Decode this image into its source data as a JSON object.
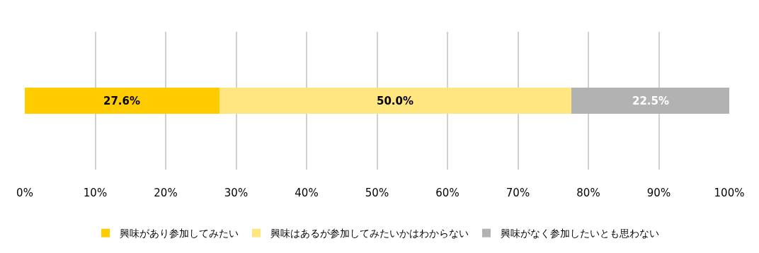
{
  "chart_data": {
    "type": "bar",
    "orientation": "horizontal",
    "stacked": true,
    "categories": [
      null
    ],
    "series": [
      {
        "name": "興味があり参加してみたい",
        "color": "#ffcc00",
        "values": [
          27.6
        ],
        "value_labels": [
          "27.6%"
        ]
      },
      {
        "name": "興味はあるが参加してみたいかはわからない",
        "color": "#ffe680",
        "values": [
          50.0
        ],
        "value_labels": [
          "50.0%"
        ]
      },
      {
        "name": "興味がなく参加したいとも思わない",
        "color": "#b2b2b2",
        "values": [
          22.5
        ],
        "value_labels": [
          "22.5%"
        ]
      }
    ],
    "xlim": [
      0,
      100
    ],
    "xticks": [
      {
        "value": 0,
        "label": "0%"
      },
      {
        "value": 10,
        "label": "10%"
      },
      {
        "value": 20,
        "label": "20%"
      },
      {
        "value": 30,
        "label": "30%"
      },
      {
        "value": 40,
        "label": "40%"
      },
      {
        "value": 50,
        "label": "50%"
      },
      {
        "value": 60,
        "label": "60%"
      },
      {
        "value": 70,
        "label": "70%"
      },
      {
        "value": 80,
        "label": "80%"
      },
      {
        "value": 90,
        "label": "90%"
      },
      {
        "value": 100,
        "label": "100%"
      }
    ],
    "grid": "x",
    "legend": "bottom",
    "tick_labels": "x"
  }
}
